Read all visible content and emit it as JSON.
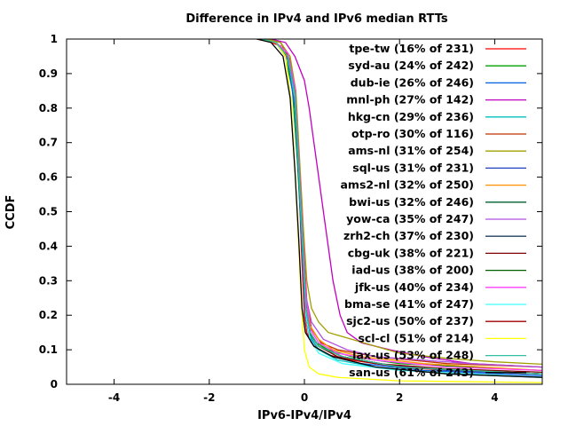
{
  "chart_data": {
    "type": "line",
    "title": "Difference in IPv4 and IPv6 median RTTs",
    "xlabel": "IPv6-IPv4/IPv4",
    "ylabel": "CCDF",
    "xlim": [
      -5,
      5
    ],
    "ylim": [
      0,
      1
    ],
    "xticks": [
      -4,
      -2,
      0,
      2,
      4
    ],
    "yticks": [
      0,
      0.1,
      0.2,
      0.3,
      0.4,
      0.5,
      0.6,
      0.7,
      0.8,
      0.9,
      1
    ],
    "grid": false,
    "legend_position": "top-right",
    "series": [
      {
        "name": "tpe-tw (16% of 231)",
        "color": "#ff0000",
        "points": [
          [
            -1.0,
            1
          ],
          [
            -0.8,
            0.995
          ],
          [
            -0.5,
            0.98
          ],
          [
            -0.3,
            0.93
          ],
          [
            -0.2,
            0.82
          ],
          [
            -0.12,
            0.6
          ],
          [
            -0.06,
            0.38
          ],
          [
            0,
            0.2
          ],
          [
            0.05,
            0.15
          ],
          [
            0.15,
            0.12
          ],
          [
            0.3,
            0.1
          ],
          [
            0.5,
            0.085
          ],
          [
            1,
            0.07
          ],
          [
            2,
            0.05
          ],
          [
            3,
            0.04
          ],
          [
            5,
            0.03
          ]
        ]
      },
      {
        "name": "syd-au (24% of 242)",
        "color": "#00a000",
        "points": [
          [
            -0.9,
            1
          ],
          [
            -0.6,
            0.99
          ],
          [
            -0.4,
            0.95
          ],
          [
            -0.25,
            0.85
          ],
          [
            -0.15,
            0.65
          ],
          [
            -0.05,
            0.4
          ],
          [
            0.02,
            0.22
          ],
          [
            0.1,
            0.15
          ],
          [
            0.25,
            0.12
          ],
          [
            0.5,
            0.1
          ],
          [
            1,
            0.08
          ],
          [
            2,
            0.06
          ],
          [
            3.5,
            0.05
          ],
          [
            5,
            0.04
          ]
        ]
      },
      {
        "name": "dub-ie (26% of 246)",
        "color": "#0060e0",
        "points": [
          [
            -0.9,
            1
          ],
          [
            -0.6,
            0.99
          ],
          [
            -0.35,
            0.94
          ],
          [
            -0.2,
            0.8
          ],
          [
            -0.12,
            0.6
          ],
          [
            -0.05,
            0.4
          ],
          [
            0.02,
            0.2
          ],
          [
            0.1,
            0.14
          ],
          [
            0.3,
            0.1
          ],
          [
            0.6,
            0.08
          ],
          [
            1.2,
            0.06
          ],
          [
            2.5,
            0.04
          ],
          [
            5,
            0.025
          ]
        ]
      },
      {
        "name": "mnl-ph (27% of 142)",
        "color": "#c000c0",
        "points": [
          [
            -0.7,
            1
          ],
          [
            -0.4,
            0.99
          ],
          [
            -0.2,
            0.95
          ],
          [
            0,
            0.88
          ],
          [
            0.1,
            0.8
          ],
          [
            0.2,
            0.7
          ],
          [
            0.3,
            0.6
          ],
          [
            0.4,
            0.5
          ],
          [
            0.5,
            0.4
          ],
          [
            0.6,
            0.3
          ],
          [
            0.75,
            0.2
          ],
          [
            0.9,
            0.15
          ],
          [
            1.2,
            0.12
          ],
          [
            1.8,
            0.1
          ],
          [
            2.5,
            0.08
          ],
          [
            3.5,
            0.06
          ],
          [
            5,
            0.05
          ]
        ]
      },
      {
        "name": "hkg-cn (29% of 236)",
        "color": "#00c0c0",
        "points": [
          [
            -0.8,
            1
          ],
          [
            -0.5,
            0.99
          ],
          [
            -0.3,
            0.94
          ],
          [
            -0.18,
            0.8
          ],
          [
            -0.1,
            0.6
          ],
          [
            -0.03,
            0.4
          ],
          [
            0.04,
            0.2
          ],
          [
            0.12,
            0.14
          ],
          [
            0.3,
            0.1
          ],
          [
            0.7,
            0.07
          ],
          [
            1.5,
            0.05
          ],
          [
            3,
            0.03
          ],
          [
            5,
            0.02
          ]
        ]
      },
      {
        "name": "otp-ro (30% of 116)",
        "color": "#c03000",
        "points": [
          [
            -0.8,
            1
          ],
          [
            -0.5,
            0.99
          ],
          [
            -0.3,
            0.94
          ],
          [
            -0.18,
            0.82
          ],
          [
            -0.1,
            0.62
          ],
          [
            -0.02,
            0.42
          ],
          [
            0.05,
            0.24
          ],
          [
            0.15,
            0.16
          ],
          [
            0.35,
            0.12
          ],
          [
            0.7,
            0.1
          ],
          [
            1.5,
            0.08
          ],
          [
            3,
            0.06
          ],
          [
            5,
            0.05
          ]
        ]
      },
      {
        "name": "ams-nl (31% of 254)",
        "color": "#a0a000",
        "points": [
          [
            -0.8,
            1
          ],
          [
            -0.5,
            0.99
          ],
          [
            -0.3,
            0.95
          ],
          [
            -0.18,
            0.85
          ],
          [
            -0.1,
            0.65
          ],
          [
            -0.02,
            0.45
          ],
          [
            0.05,
            0.3
          ],
          [
            0.15,
            0.22
          ],
          [
            0.3,
            0.18
          ],
          [
            0.5,
            0.15
          ],
          [
            1,
            0.13
          ],
          [
            1.5,
            0.11
          ],
          [
            2,
            0.09
          ],
          [
            3,
            0.075
          ],
          [
            4,
            0.065
          ],
          [
            5,
            0.058
          ]
        ]
      },
      {
        "name": "sql-us (31% of 231)",
        "color": "#2040c0",
        "points": [
          [
            -0.9,
            1
          ],
          [
            -0.6,
            0.99
          ],
          [
            -0.35,
            0.95
          ],
          [
            -0.2,
            0.83
          ],
          [
            -0.12,
            0.62
          ],
          [
            -0.04,
            0.42
          ],
          [
            0.03,
            0.22
          ],
          [
            0.1,
            0.15
          ],
          [
            0.3,
            0.11
          ],
          [
            0.8,
            0.08
          ],
          [
            1.5,
            0.06
          ],
          [
            3,
            0.04
          ],
          [
            5,
            0.03
          ]
        ]
      },
      {
        "name": "ams2-nl (32% of 250)",
        "color": "#ff9000",
        "points": [
          [
            -0.9,
            1
          ],
          [
            -0.6,
            0.99
          ],
          [
            -0.35,
            0.96
          ],
          [
            -0.2,
            0.86
          ],
          [
            -0.12,
            0.66
          ],
          [
            -0.04,
            0.45
          ],
          [
            0.03,
            0.26
          ],
          [
            0.12,
            0.17
          ],
          [
            0.3,
            0.13
          ],
          [
            0.6,
            0.1
          ],
          [
            1.2,
            0.08
          ],
          [
            2.5,
            0.06
          ],
          [
            5,
            0.04
          ]
        ]
      },
      {
        "name": "bwi-us (32% of 246)",
        "color": "#006030",
        "points": [
          [
            -0.9,
            1
          ],
          [
            -0.6,
            0.99
          ],
          [
            -0.35,
            0.95
          ],
          [
            -0.2,
            0.84
          ],
          [
            -0.12,
            0.63
          ],
          [
            -0.04,
            0.42
          ],
          [
            0.03,
            0.22
          ],
          [
            0.1,
            0.15
          ],
          [
            0.3,
            0.11
          ],
          [
            0.8,
            0.08
          ],
          [
            2,
            0.05
          ],
          [
            5,
            0.03
          ]
        ]
      },
      {
        "name": "yow-ca (35% of 247)",
        "color": "#b050e0",
        "points": [
          [
            -0.9,
            1
          ],
          [
            -0.6,
            0.99
          ],
          [
            -0.35,
            0.96
          ],
          [
            -0.2,
            0.86
          ],
          [
            -0.12,
            0.66
          ],
          [
            -0.04,
            0.45
          ],
          [
            0.04,
            0.25
          ],
          [
            0.15,
            0.18
          ],
          [
            0.4,
            0.13
          ],
          [
            0.9,
            0.1
          ],
          [
            1.5,
            0.08
          ],
          [
            2.5,
            0.07
          ],
          [
            3.5,
            0.06
          ],
          [
            5,
            0.05
          ]
        ]
      },
      {
        "name": "zrh2-ch (37% of 230)",
        "color": "#204060",
        "points": [
          [
            -0.9,
            1
          ],
          [
            -0.6,
            0.99
          ],
          [
            -0.35,
            0.95
          ],
          [
            -0.2,
            0.84
          ],
          [
            -0.12,
            0.63
          ],
          [
            -0.04,
            0.42
          ],
          [
            0.03,
            0.22
          ],
          [
            0.12,
            0.15
          ],
          [
            0.3,
            0.11
          ],
          [
            0.8,
            0.08
          ],
          [
            2,
            0.05
          ],
          [
            5,
            0.03
          ]
        ]
      },
      {
        "name": "cbg-uk (38% of 221)",
        "color": "#800000",
        "points": [
          [
            -0.9,
            1
          ],
          [
            -0.6,
            0.99
          ],
          [
            -0.35,
            0.95
          ],
          [
            -0.2,
            0.84
          ],
          [
            -0.12,
            0.63
          ],
          [
            -0.04,
            0.42
          ],
          [
            0.03,
            0.22
          ],
          [
            0.12,
            0.15
          ],
          [
            0.3,
            0.11
          ],
          [
            0.7,
            0.08
          ],
          [
            1.5,
            0.06
          ],
          [
            3,
            0.045
          ],
          [
            5,
            0.035
          ]
        ]
      },
      {
        "name": "iad-us (38% of 200)",
        "color": "#006000",
        "points": [
          [
            -0.9,
            1
          ],
          [
            -0.6,
            0.99
          ],
          [
            -0.35,
            0.95
          ],
          [
            -0.2,
            0.84
          ],
          [
            -0.12,
            0.63
          ],
          [
            -0.04,
            0.42
          ],
          [
            0.03,
            0.22
          ],
          [
            0.12,
            0.15
          ],
          [
            0.3,
            0.11
          ],
          [
            0.8,
            0.08
          ],
          [
            2,
            0.05
          ],
          [
            5,
            0.03
          ]
        ]
      },
      {
        "name": "jfk-us (40% of 234)",
        "color": "#ff40ff",
        "points": [
          [
            -0.9,
            1
          ],
          [
            -0.6,
            0.99
          ],
          [
            -0.35,
            0.96
          ],
          [
            -0.2,
            0.86
          ],
          [
            -0.12,
            0.65
          ],
          [
            -0.04,
            0.44
          ],
          [
            0.04,
            0.24
          ],
          [
            0.12,
            0.16
          ],
          [
            0.3,
            0.12
          ],
          [
            0.7,
            0.09
          ],
          [
            1.5,
            0.07
          ],
          [
            3,
            0.05
          ],
          [
            5,
            0.04
          ]
        ]
      },
      {
        "name": "bma-se (41% of 247)",
        "color": "#40ffff",
        "points": [
          [
            -0.9,
            1
          ],
          [
            -0.6,
            0.99
          ],
          [
            -0.35,
            0.95
          ],
          [
            -0.2,
            0.83
          ],
          [
            -0.12,
            0.62
          ],
          [
            -0.04,
            0.4
          ],
          [
            0.03,
            0.2
          ],
          [
            0.12,
            0.13
          ],
          [
            0.3,
            0.09
          ],
          [
            0.8,
            0.06
          ],
          [
            2,
            0.04
          ],
          [
            5,
            0.02
          ]
        ]
      },
      {
        "name": "sjc2-us (50% of 237)",
        "color": "#a00000",
        "points": [
          [
            -0.9,
            1
          ],
          [
            -0.6,
            0.99
          ],
          [
            -0.35,
            0.95
          ],
          [
            -0.2,
            0.84
          ],
          [
            -0.12,
            0.63
          ],
          [
            -0.04,
            0.42
          ],
          [
            0.03,
            0.22
          ],
          [
            0.12,
            0.15
          ],
          [
            0.3,
            0.11
          ],
          [
            0.8,
            0.08
          ],
          [
            2,
            0.05
          ],
          [
            5,
            0.03
          ]
        ]
      },
      {
        "name": "scl-cl (51% of 214)",
        "color": "#ffff00",
        "points": [
          [
            -0.9,
            1
          ],
          [
            -0.6,
            0.99
          ],
          [
            -0.4,
            0.95
          ],
          [
            -0.28,
            0.82
          ],
          [
            -0.2,
            0.62
          ],
          [
            -0.12,
            0.4
          ],
          [
            -0.05,
            0.2
          ],
          [
            0,
            0.1
          ],
          [
            0.1,
            0.05
          ],
          [
            0.3,
            0.03
          ],
          [
            0.7,
            0.02
          ],
          [
            2,
            0.01
          ],
          [
            5,
            0.005
          ]
        ]
      },
      {
        "name": "lax-us (53% of 248)",
        "color": "#30c0a0",
        "points": [
          [
            -0.9,
            1
          ],
          [
            -0.6,
            0.99
          ],
          [
            -0.35,
            0.95
          ],
          [
            -0.2,
            0.84
          ],
          [
            -0.12,
            0.63
          ],
          [
            -0.04,
            0.42
          ],
          [
            0.03,
            0.22
          ],
          [
            0.12,
            0.15
          ],
          [
            0.3,
            0.11
          ],
          [
            0.8,
            0.08
          ],
          [
            2,
            0.05
          ],
          [
            5,
            0.03
          ]
        ]
      },
      {
        "name": "san-us (61% of 243)",
        "color": "#000000",
        "points": [
          [
            -1.0,
            1
          ],
          [
            -0.7,
            0.99
          ],
          [
            -0.45,
            0.95
          ],
          [
            -0.3,
            0.83
          ],
          [
            -0.2,
            0.62
          ],
          [
            -0.12,
            0.42
          ],
          [
            -0.05,
            0.22
          ],
          [
            0.02,
            0.15
          ],
          [
            0.2,
            0.11
          ],
          [
            0.6,
            0.08
          ],
          [
            1.5,
            0.05
          ],
          [
            3,
            0.03
          ],
          [
            5,
            0.02
          ]
        ]
      }
    ]
  }
}
